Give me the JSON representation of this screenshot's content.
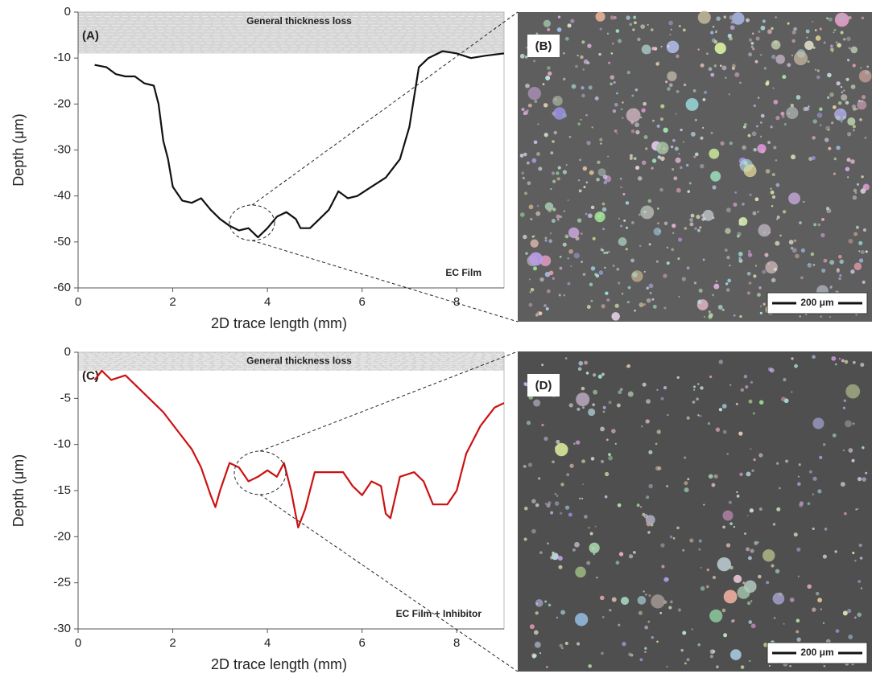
{
  "chart_data": [
    {
      "type": "line",
      "panel_label": "(A)",
      "band_label": "General thickness loss",
      "band": [
        -9,
        0
      ],
      "note": "EC Film",
      "x_label": "2D trace length (mm)",
      "y_label": "Depth (μm)",
      "xlim": [
        0,
        9
      ],
      "xticks": [
        0,
        2,
        4,
        6,
        8
      ],
      "ylim": [
        -60,
        0
      ],
      "yticks": [
        0,
        -10,
        -20,
        -30,
        -40,
        -50,
        -60
      ],
      "x": [
        0.35,
        0.6,
        0.8,
        1.0,
        1.2,
        1.4,
        1.6,
        1.7,
        1.8,
        1.9,
        2.0,
        2.2,
        2.4,
        2.6,
        2.8,
        3.0,
        3.2,
        3.4,
        3.6,
        3.8,
        4.0,
        4.2,
        4.4,
        4.6,
        4.7,
        4.9,
        5.1,
        5.3,
        5.5,
        5.7,
        5.9,
        6.2,
        6.5,
        6.8,
        7.0,
        7.2,
        7.4,
        7.7,
        8.0,
        8.3,
        8.6,
        9.0
      ],
      "series": [
        {
          "name": "EC Film",
          "color": "#111111",
          "values": [
            -11.5,
            -12,
            -13.5,
            -14,
            -14,
            -15.5,
            -16,
            -20,
            -28,
            -32,
            -38,
            -41,
            -41.5,
            -40.5,
            -43,
            -45,
            -46.5,
            -47.5,
            -47,
            -49,
            -47,
            -44.5,
            -43.5,
            -45,
            -47,
            -47,
            -45,
            -43,
            -39,
            -40.5,
            -40,
            -38,
            -36,
            -32,
            -25,
            -12,
            -10,
            -8.5,
            -9,
            -10,
            -9.5,
            -9
          ]
        }
      ]
    },
    {
      "type": "line",
      "panel_label": "(C)",
      "band_label": "General thickness loss",
      "band": [
        -2,
        0
      ],
      "note": "EC Film + Inhibitor",
      "x_label": "2D trace length (mm)",
      "y_label": "Depth (μm)",
      "xlim": [
        0,
        9
      ],
      "xticks": [
        0,
        2,
        4,
        6,
        8
      ],
      "ylim": [
        -30,
        0
      ],
      "yticks": [
        0,
        -5,
        -10,
        -15,
        -20,
        -25,
        -30
      ],
      "x": [
        0.35,
        0.5,
        0.7,
        1.0,
        1.2,
        1.5,
        1.8,
        2.1,
        2.4,
        2.6,
        2.8,
        2.9,
        3.0,
        3.2,
        3.4,
        3.6,
        3.8,
        4.0,
        4.2,
        4.35,
        4.5,
        4.65,
        4.8,
        5.0,
        5.3,
        5.6,
        5.8,
        6.0,
        6.2,
        6.4,
        6.5,
        6.6,
        6.8,
        7.1,
        7.3,
        7.5,
        7.8,
        8.0,
        8.2,
        8.5,
        8.8,
        9.0
      ],
      "series": [
        {
          "name": "EC Film + Inhibitor",
          "color": "#cc1111",
          "values": [
            -3,
            -2,
            -3,
            -2.5,
            -3.5,
            -5,
            -6.5,
            -8.5,
            -10.5,
            -12.5,
            -15.5,
            -16.8,
            -15,
            -12,
            -12.5,
            -14,
            -13.5,
            -12.8,
            -13.5,
            -12,
            -15,
            -19,
            -17,
            -13,
            -13,
            -13,
            -14.5,
            -15.5,
            -14,
            -14.5,
            -17.5,
            -18,
            -13.5,
            -13,
            -14,
            -16.5,
            -16.5,
            -15,
            -11,
            -8,
            -6,
            -5.5
          ]
        }
      ]
    }
  ],
  "images": [
    {
      "label": "(B)",
      "scale_bar": "200 μm"
    },
    {
      "label": "(D)",
      "scale_bar": "200 μm"
    }
  ]
}
